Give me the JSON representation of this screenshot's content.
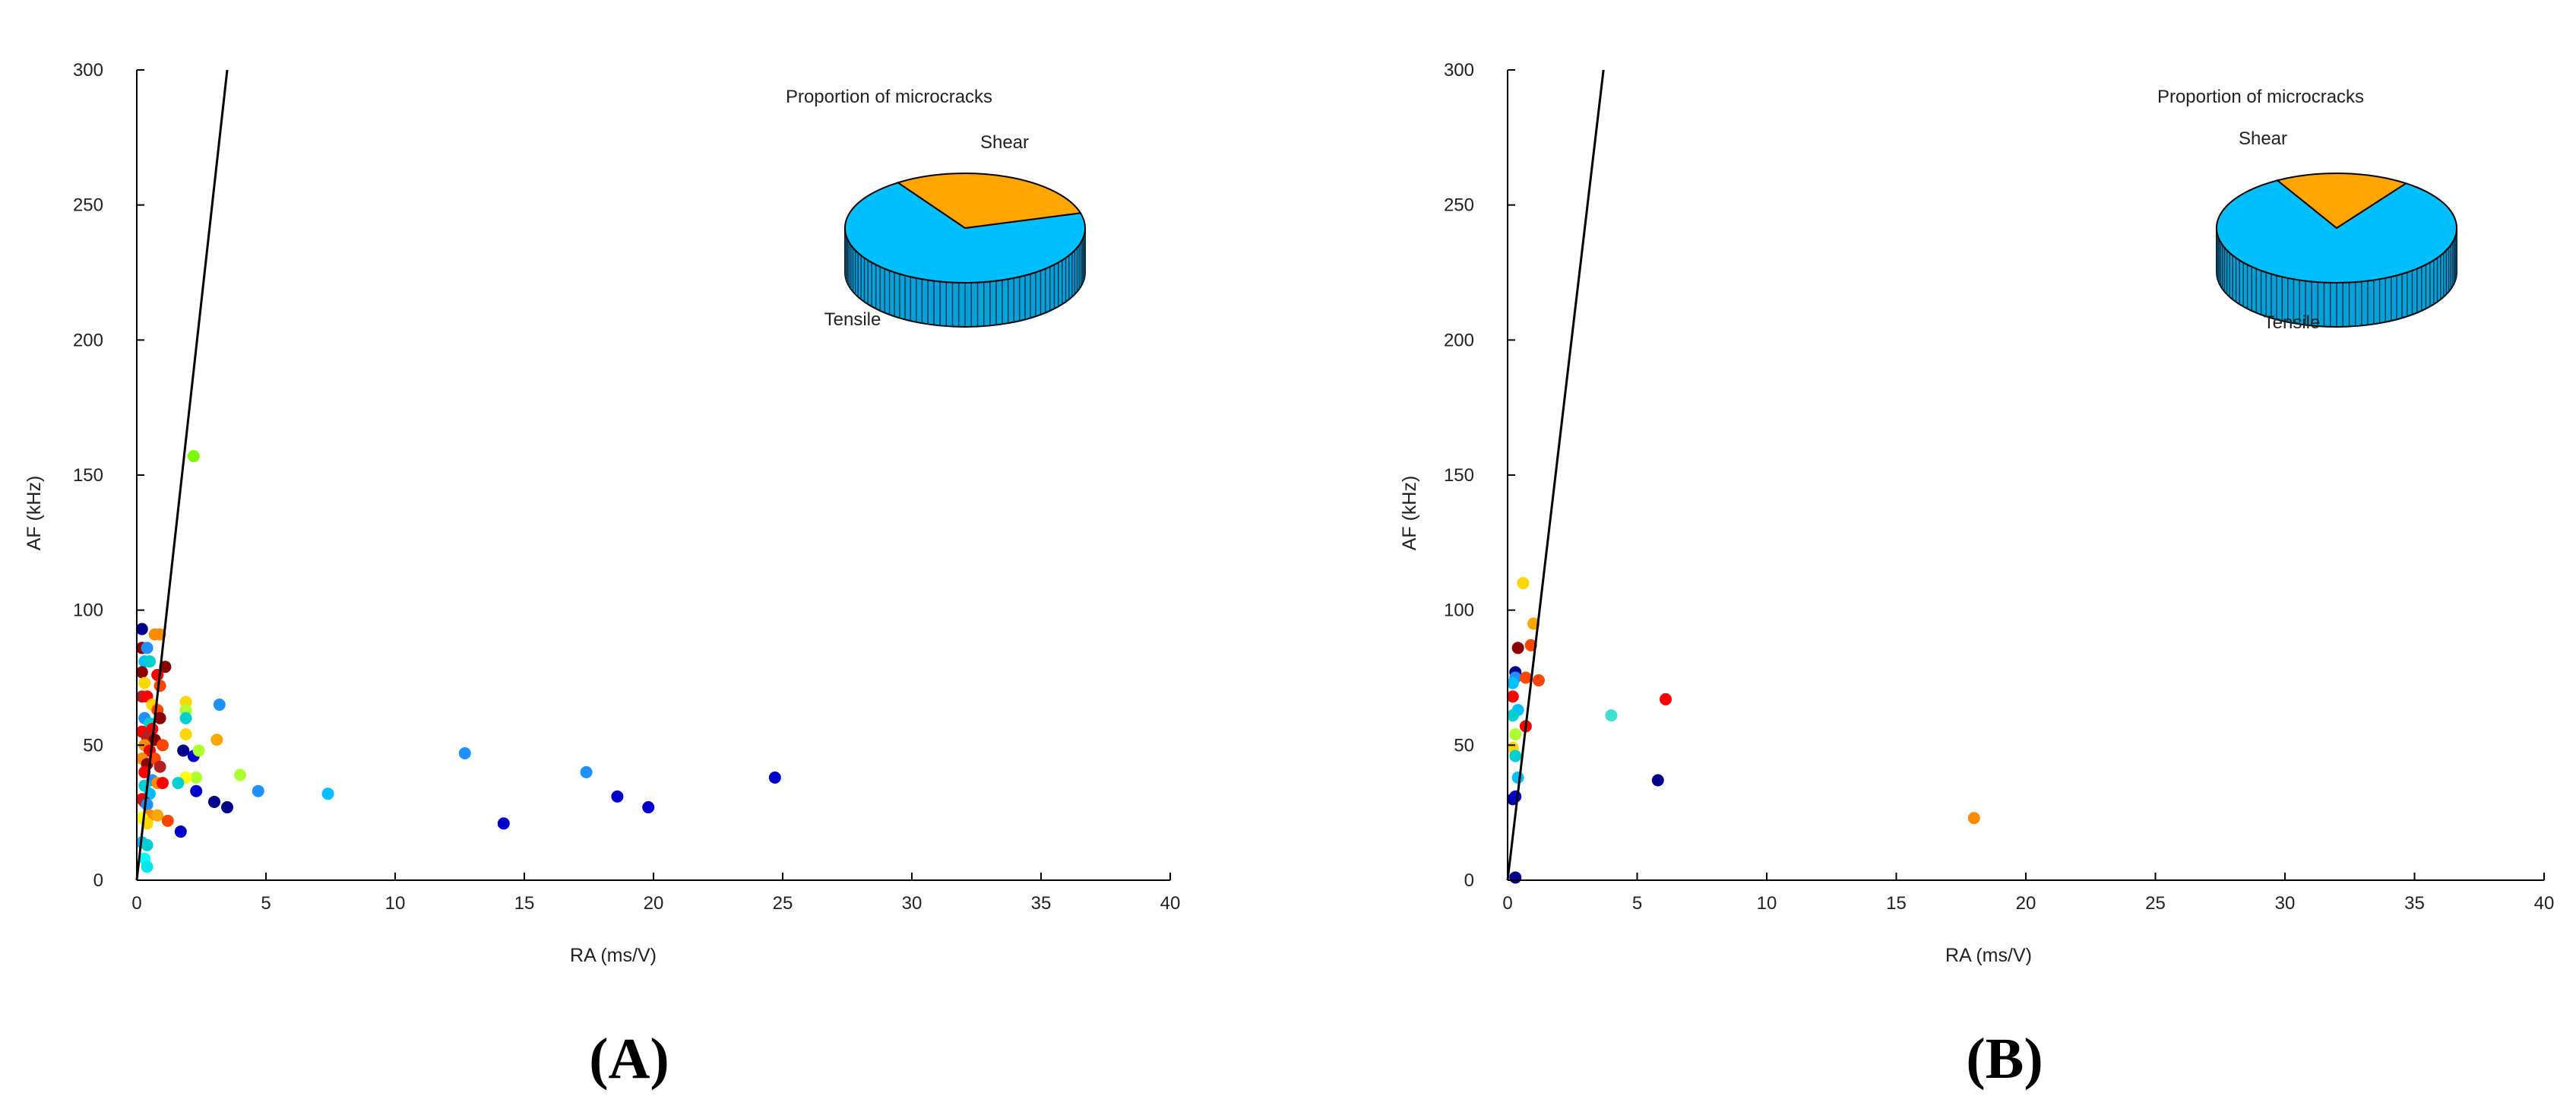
{
  "chart_data": [
    {
      "type": "scatter",
      "panel_label": "(A)",
      "xlabel": "RA (ms/V)",
      "ylabel": "AF (kHz)",
      "xlim": [
        0,
        40
      ],
      "ylim": [
        0,
        300
      ],
      "xticks": [
        0,
        5,
        10,
        15,
        20,
        25,
        30,
        35,
        40
      ],
      "yticks": [
        0,
        50,
        100,
        150,
        200,
        250,
        300
      ],
      "grid": false,
      "divider_line": {
        "x": [
          0,
          3.5
        ],
        "y": [
          0,
          300
        ]
      },
      "points": [
        {
          "x": 0.2,
          "y": 93,
          "c": "#00008b"
        },
        {
          "x": 0.2,
          "y": 86,
          "c": "#8b0000"
        },
        {
          "x": 0.4,
          "y": 86,
          "c": "#1e90ff"
        },
        {
          "x": 0.3,
          "y": 81,
          "c": "#00bfff"
        },
        {
          "x": 0.5,
          "y": 81,
          "c": "#00ced1"
        },
        {
          "x": 0.2,
          "y": 77,
          "c": "#8b0000"
        },
        {
          "x": 0.3,
          "y": 73,
          "c": "#ffd700"
        },
        {
          "x": 0.7,
          "y": 91,
          "c": "#ff8c00"
        },
        {
          "x": 0.9,
          "y": 91,
          "c": "#ff8c00"
        },
        {
          "x": 0.8,
          "y": 76,
          "c": "#ff0000"
        },
        {
          "x": 0.9,
          "y": 72,
          "c": "#ff4500"
        },
        {
          "x": 1.1,
          "y": 79,
          "c": "#8b0000"
        },
        {
          "x": 0.2,
          "y": 68,
          "c": "#b22222"
        },
        {
          "x": 0.4,
          "y": 68,
          "c": "#ff0000"
        },
        {
          "x": 0.6,
          "y": 65,
          "c": "#ffd700"
        },
        {
          "x": 0.8,
          "y": 63,
          "c": "#ff4500"
        },
        {
          "x": 0.9,
          "y": 60,
          "c": "#8b0000"
        },
        {
          "x": 0.3,
          "y": 60,
          "c": "#1e90ff"
        },
        {
          "x": 0.5,
          "y": 58,
          "c": "#00ced1"
        },
        {
          "x": 0.6,
          "y": 56,
          "c": "#ff0000"
        },
        {
          "x": 0.2,
          "y": 55,
          "c": "#ff0000"
        },
        {
          "x": 0.4,
          "y": 53,
          "c": "#b22222"
        },
        {
          "x": 0.7,
          "y": 52,
          "c": "#8b0000"
        },
        {
          "x": 0.3,
          "y": 50,
          "c": "#ff8c00"
        },
        {
          "x": 0.5,
          "y": 48,
          "c": "#ff0000"
        },
        {
          "x": 1.0,
          "y": 50,
          "c": "#ff4500"
        },
        {
          "x": 0.2,
          "y": 45,
          "c": "#ff8c00"
        },
        {
          "x": 0.4,
          "y": 43,
          "c": "#8b0000"
        },
        {
          "x": 0.7,
          "y": 45,
          "c": "#ff4500"
        },
        {
          "x": 0.9,
          "y": 42,
          "c": "#b22222"
        },
        {
          "x": 0.3,
          "y": 40,
          "c": "#ff0000"
        },
        {
          "x": 0.6,
          "y": 37,
          "c": "#1e90ff"
        },
        {
          "x": 0.8,
          "y": 36,
          "c": "#ff8c00"
        },
        {
          "x": 1.0,
          "y": 36,
          "c": "#ff0000"
        },
        {
          "x": 0.3,
          "y": 35,
          "c": "#00ced1"
        },
        {
          "x": 0.5,
          "y": 32,
          "c": "#00bfff"
        },
        {
          "x": 0.2,
          "y": 30,
          "c": "#ff0000"
        },
        {
          "x": 0.3,
          "y": 29,
          "c": "#b22222"
        },
        {
          "x": 0.4,
          "y": 28,
          "c": "#1e90ff"
        },
        {
          "x": 0.5,
          "y": 24,
          "c": "#ff8c00"
        },
        {
          "x": 0.8,
          "y": 24,
          "c": "#ffa500"
        },
        {
          "x": 0.2,
          "y": 23,
          "c": "#ffff00"
        },
        {
          "x": 0.4,
          "y": 21,
          "c": "#ffd700"
        },
        {
          "x": 1.2,
          "y": 22,
          "c": "#ff4500"
        },
        {
          "x": 0.2,
          "y": 14,
          "c": "#00bfff"
        },
        {
          "x": 0.4,
          "y": 13,
          "c": "#00ced1"
        },
        {
          "x": 0.3,
          "y": 8,
          "c": "#00ffff"
        },
        {
          "x": 0.4,
          "y": 5,
          "c": "#00e5ee"
        },
        {
          "x": 2.2,
          "y": 157,
          "c": "#7cfc00"
        },
        {
          "x": 1.9,
          "y": 66,
          "c": "#ffd700"
        },
        {
          "x": 1.9,
          "y": 63,
          "c": "#adff2f"
        },
        {
          "x": 1.9,
          "y": 60,
          "c": "#00ced1"
        },
        {
          "x": 1.9,
          "y": 54,
          "c": "#ffd700"
        },
        {
          "x": 3.2,
          "y": 65,
          "c": "#1e90ff"
        },
        {
          "x": 3.1,
          "y": 52,
          "c": "#ffa500"
        },
        {
          "x": 1.8,
          "y": 48,
          "c": "#00008b"
        },
        {
          "x": 2.2,
          "y": 46,
          "c": "#0000cd"
        },
        {
          "x": 2.4,
          "y": 48,
          "c": "#adff2f"
        },
        {
          "x": 4.0,
          "y": 39,
          "c": "#adff2f"
        },
        {
          "x": 2.3,
          "y": 38,
          "c": "#adff2f"
        },
        {
          "x": 1.9,
          "y": 38,
          "c": "#ffff00"
        },
        {
          "x": 1.6,
          "y": 36,
          "c": "#00ced1"
        },
        {
          "x": 2.3,
          "y": 33,
          "c": "#0000cd"
        },
        {
          "x": 3.0,
          "y": 29,
          "c": "#00008b"
        },
        {
          "x": 3.5,
          "y": 27,
          "c": "#00008b"
        },
        {
          "x": 1.7,
          "y": 18,
          "c": "#0000cd"
        },
        {
          "x": 4.7,
          "y": 33,
          "c": "#1e90ff"
        },
        {
          "x": 7.4,
          "y": 32,
          "c": "#00bfff"
        },
        {
          "x": 12.7,
          "y": 47,
          "c": "#1e90ff"
        },
        {
          "x": 14.2,
          "y": 21,
          "c": "#0000cd"
        },
        {
          "x": 17.4,
          "y": 40,
          "c": "#1e90ff"
        },
        {
          "x": 18.6,
          "y": 31,
          "c": "#0000cd"
        },
        {
          "x": 19.8,
          "y": 27,
          "c": "#0000cd"
        },
        {
          "x": 24.7,
          "y": 38,
          "c": "#0000cd"
        }
      ],
      "pie": {
        "title": "Proportion of microcracks",
        "slices": [
          {
            "label": "Shear",
            "value": 30,
            "color": "#ffa500"
          },
          {
            "label": "Tensile",
            "value": 70,
            "color": "#00bfff"
          }
        ]
      }
    },
    {
      "type": "scatter",
      "panel_label": "(B)",
      "xlabel": "RA (ms/V)",
      "ylabel": "AF (kHz)",
      "xlim": [
        0,
        40
      ],
      "ylim": [
        0,
        300
      ],
      "xticks": [
        0,
        5,
        10,
        15,
        20,
        25,
        30,
        35,
        40
      ],
      "yticks": [
        0,
        50,
        100,
        150,
        200,
        250,
        300
      ],
      "grid": false,
      "divider_line": {
        "x": [
          0,
          3.7
        ],
        "y": [
          0,
          300
        ]
      },
      "points": [
        {
          "x": 0.6,
          "y": 110,
          "c": "#ffd700"
        },
        {
          "x": 1.0,
          "y": 95,
          "c": "#ffa500"
        },
        {
          "x": 0.4,
          "y": 86,
          "c": "#8b0000"
        },
        {
          "x": 0.9,
          "y": 87,
          "c": "#ff4500"
        },
        {
          "x": 0.3,
          "y": 77,
          "c": "#00008b"
        },
        {
          "x": 0.3,
          "y": 75,
          "c": "#1e90ff"
        },
        {
          "x": 0.7,
          "y": 75,
          "c": "#ff4500"
        },
        {
          "x": 1.2,
          "y": 74,
          "c": "#ff4500"
        },
        {
          "x": 0.2,
          "y": 73,
          "c": "#00bfff"
        },
        {
          "x": 0.2,
          "y": 68,
          "c": "#ff0000"
        },
        {
          "x": 0.4,
          "y": 63,
          "c": "#00bfff"
        },
        {
          "x": 0.2,
          "y": 61,
          "c": "#00ced1"
        },
        {
          "x": 0.7,
          "y": 57,
          "c": "#ff0000"
        },
        {
          "x": 0.3,
          "y": 54,
          "c": "#adff2f"
        },
        {
          "x": 0.2,
          "y": 49,
          "c": "#ffd700"
        },
        {
          "x": 0.3,
          "y": 46,
          "c": "#00ced1"
        },
        {
          "x": 0.4,
          "y": 38,
          "c": "#00bfff"
        },
        {
          "x": 0.2,
          "y": 30,
          "c": "#00008b"
        },
        {
          "x": 0.3,
          "y": 31,
          "c": "#0000cd"
        },
        {
          "x": 0.3,
          "y": 1,
          "c": "#00008b"
        },
        {
          "x": 4.0,
          "y": 61,
          "c": "#40e0d0"
        },
        {
          "x": 6.1,
          "y": 67,
          "c": "#ff0000"
        },
        {
          "x": 5.8,
          "y": 37,
          "c": "#00008b"
        },
        {
          "x": 18.0,
          "y": 23,
          "c": "#ff8c00"
        }
      ],
      "pie": {
        "title": "Proportion of microcracks",
        "slices": [
          {
            "label": "Shear",
            "value": 18,
            "color": "#ffa500"
          },
          {
            "label": "Tensile",
            "value": 82,
            "color": "#00bfff"
          }
        ]
      }
    }
  ]
}
